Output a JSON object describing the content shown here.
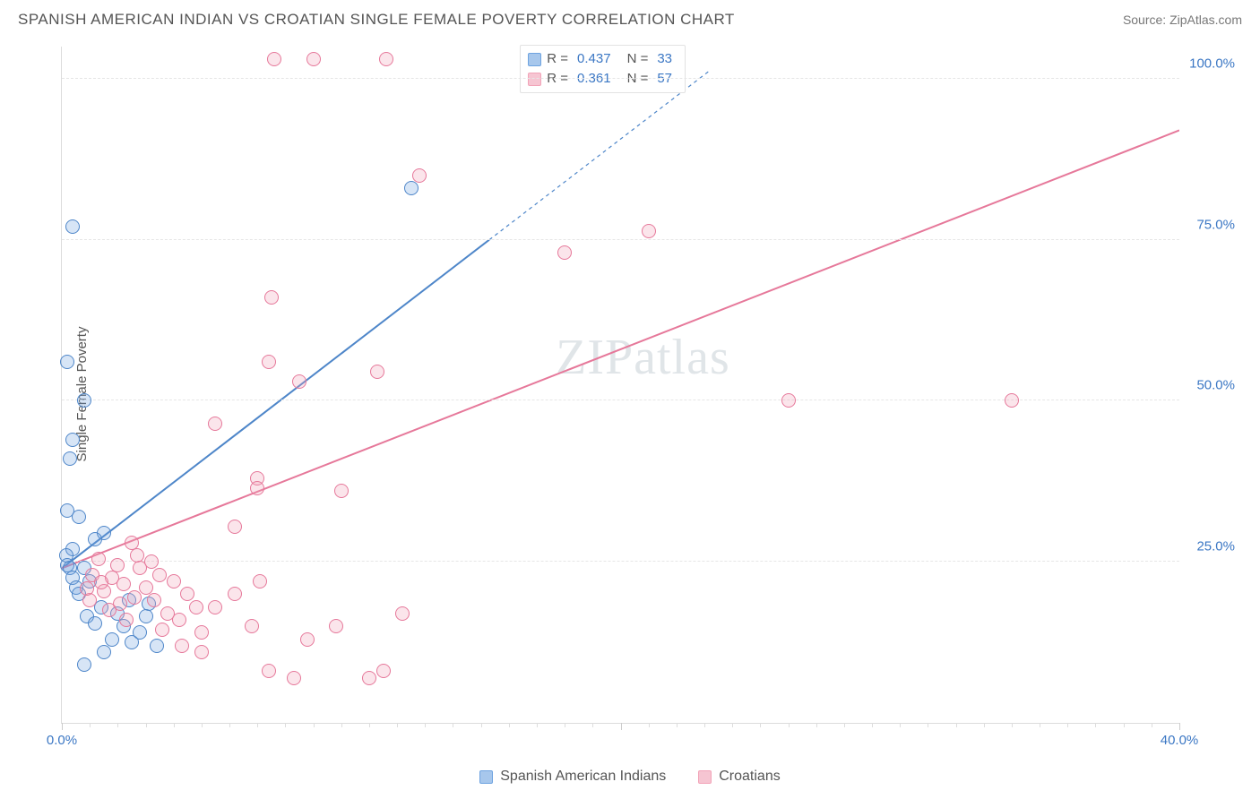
{
  "header": {
    "title": "SPANISH AMERICAN INDIAN VS CROATIAN SINGLE FEMALE POVERTY CORRELATION CHART",
    "source_label": "Source: ZipAtlas.com"
  },
  "chart": {
    "type": "scatter",
    "ylabel": "Single Female Poverty",
    "background_color": "#ffffff",
    "grid_color": "#e6e6e6",
    "axis_color": "#dcdcdc",
    "tick_label_color": "#3b77c4",
    "tick_fontsize": 15,
    "label_fontsize": 15,
    "title_fontsize": 17,
    "xlim": [
      0,
      40
    ],
    "ylim": [
      0,
      105
    ],
    "x_ticks_major": [
      0,
      20,
      40
    ],
    "x_ticks_minor_step": 1,
    "x_tick_labels": {
      "0": "0.0%",
      "40": "40.0%"
    },
    "y_gridlines": [
      25,
      50,
      75,
      100
    ],
    "y_tick_labels": {
      "25": "25.0%",
      "50": "50.0%",
      "75": "75.0%",
      "100": "100.0%"
    },
    "marker_radius": 8,
    "marker_fill_opacity": 0.28,
    "marker_stroke_width": 1.3,
    "series": [
      {
        "name": "Spanish American Indians",
        "color": "#6ea3e0",
        "stroke": "#4e86c9",
        "R": 0.437,
        "N": 33,
        "trend": {
          "x1": 0,
          "y1": 24,
          "x2": 15.3,
          "y2": 75,
          "dash_after_x": 15.3,
          "dash_to_x": 23.2,
          "dash_to_y": 101.3,
          "width": 2
        },
        "points": [
          [
            0.4,
            77
          ],
          [
            0.2,
            56
          ],
          [
            0.8,
            50
          ],
          [
            0.4,
            44
          ],
          [
            0.3,
            41
          ],
          [
            0.2,
            33
          ],
          [
            0.6,
            32
          ],
          [
            1.5,
            29.5
          ],
          [
            1.2,
            28.5
          ],
          [
            0.4,
            27
          ],
          [
            0.15,
            26
          ],
          [
            0.2,
            24.5
          ],
          [
            0.3,
            24
          ],
          [
            0.8,
            24
          ],
          [
            0.4,
            22.5
          ],
          [
            1.0,
            22
          ],
          [
            0.5,
            21
          ],
          [
            0.6,
            20
          ],
          [
            2.4,
            19
          ],
          [
            3.1,
            18.5
          ],
          [
            1.4,
            18
          ],
          [
            2.0,
            17
          ],
          [
            0.9,
            16.5
          ],
          [
            1.2,
            15.5
          ],
          [
            2.2,
            15
          ],
          [
            2.8,
            14
          ],
          [
            1.8,
            13
          ],
          [
            2.5,
            12.5
          ],
          [
            3.4,
            12
          ],
          [
            1.5,
            11
          ],
          [
            0.8,
            9
          ],
          [
            3.0,
            16.5
          ],
          [
            12.5,
            83
          ]
        ]
      },
      {
        "name": "Croatians",
        "color": "#f2a3b8",
        "stroke": "#e6789a",
        "R": 0.361,
        "N": 57,
        "trend": {
          "x1": 0,
          "y1": 24,
          "x2": 40,
          "y2": 92,
          "width": 2
        },
        "points": [
          [
            7.6,
            103
          ],
          [
            9.0,
            103
          ],
          [
            11.6,
            103
          ],
          [
            12.8,
            85
          ],
          [
            21.0,
            76.3
          ],
          [
            7.5,
            66
          ],
          [
            18.0,
            73
          ],
          [
            11.3,
            54.5
          ],
          [
            7.4,
            56
          ],
          [
            8.5,
            53
          ],
          [
            5.5,
            46.5
          ],
          [
            7.0,
            38
          ],
          [
            10.0,
            36
          ],
          [
            2.5,
            28
          ],
          [
            1.3,
            25.5
          ],
          [
            2.0,
            24.5
          ],
          [
            2.8,
            24
          ],
          [
            3.5,
            23
          ],
          [
            1.8,
            22.5
          ],
          [
            4.0,
            22
          ],
          [
            2.2,
            21.5
          ],
          [
            3.0,
            21
          ],
          [
            1.5,
            20.5
          ],
          [
            4.5,
            20
          ],
          [
            2.6,
            19.5
          ],
          [
            1.0,
            19
          ],
          [
            3.3,
            19
          ],
          [
            2.1,
            18.5
          ],
          [
            4.8,
            18
          ],
          [
            1.7,
            17.5
          ],
          [
            5.5,
            18
          ],
          [
            6.2,
            20
          ],
          [
            3.8,
            17
          ],
          [
            6.8,
            15
          ],
          [
            4.2,
            16
          ],
          [
            5.0,
            14
          ],
          [
            7.1,
            22
          ],
          [
            6.2,
            30.5
          ],
          [
            2.3,
            16
          ],
          [
            3.6,
            14.5
          ],
          [
            4.3,
            12
          ],
          [
            5.0,
            11
          ],
          [
            7.4,
            8
          ],
          [
            8.3,
            7
          ],
          [
            9.8,
            15
          ],
          [
            11.0,
            7
          ],
          [
            12.2,
            17
          ],
          [
            11.5,
            8
          ],
          [
            8.8,
            13
          ],
          [
            7.0,
            36.5
          ],
          [
            26.0,
            50
          ],
          [
            34.0,
            50
          ],
          [
            1.1,
            23
          ],
          [
            1.4,
            21.8
          ],
          [
            0.9,
            20.8
          ],
          [
            2.7,
            26
          ],
          [
            3.2,
            25
          ]
        ]
      }
    ],
    "stats_box": {
      "rows": [
        {
          "swatch": "#a7c7ec",
          "border": "#6ea3e0",
          "R_label": "R =",
          "R": "0.437",
          "N_label": "N =",
          "N": "33"
        },
        {
          "swatch": "#f6c5d2",
          "border": "#f2a3b8",
          "R_label": "R =",
          "R": "0.361",
          "N_label": "N =",
          "N": "57"
        }
      ]
    },
    "legend_bottom": [
      {
        "swatch": "#a7c7ec",
        "border": "#6ea3e0",
        "label": "Spanish American Indians"
      },
      {
        "swatch": "#f6c5d2",
        "border": "#f2a3b8",
        "label": "Croatians"
      }
    ],
    "watermark": {
      "text_a": "ZIP",
      "text_b": "atlas"
    }
  }
}
